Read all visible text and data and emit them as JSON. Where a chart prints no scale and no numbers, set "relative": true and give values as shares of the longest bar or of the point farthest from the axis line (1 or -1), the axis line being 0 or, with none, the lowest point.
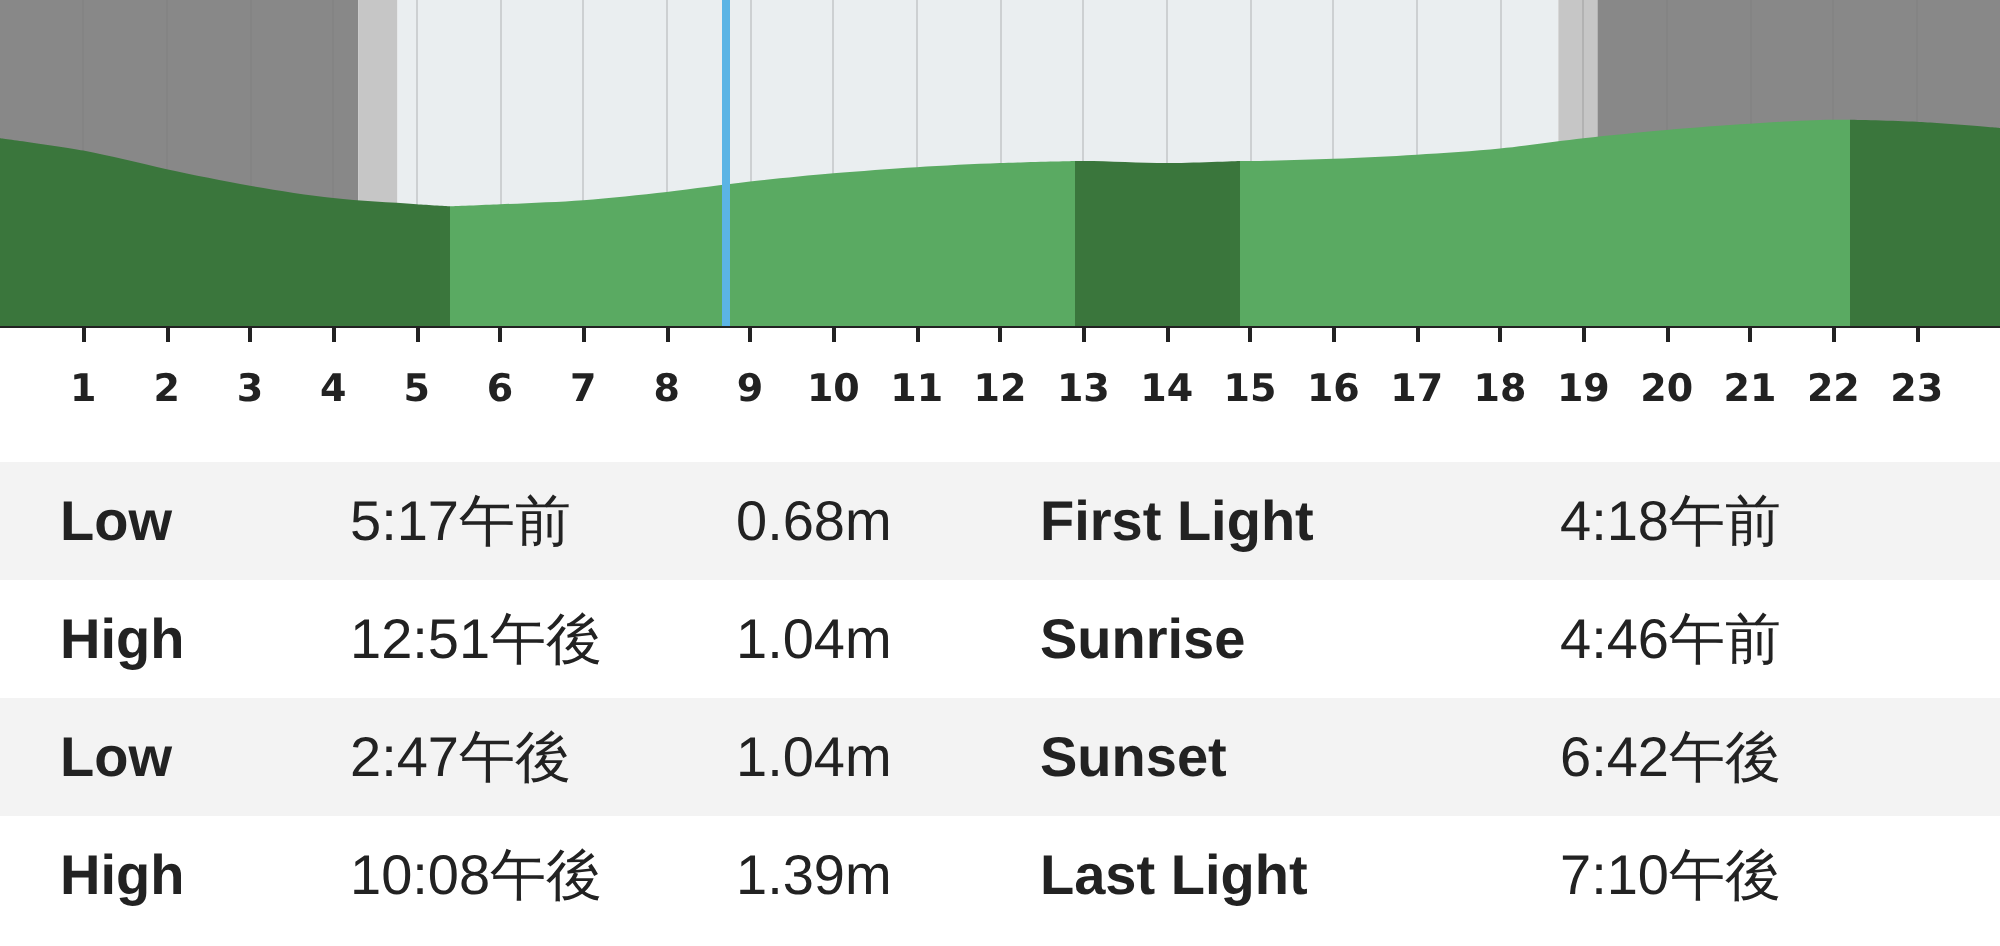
{
  "chart_data": {
    "type": "area",
    "relative": true,
    "xlim": [
      0,
      24
    ],
    "xticks": [
      1,
      2,
      3,
      4,
      5,
      6,
      7,
      8,
      9,
      10,
      11,
      12,
      13,
      14,
      15,
      16,
      17,
      18,
      19,
      20,
      21,
      22,
      23
    ],
    "grid": "x",
    "series": [
      {
        "color": "#3a763c",
        "x": [
          0,
          1,
          2,
          3,
          4,
          5,
          5.4
        ],
        "values": [
          0.91,
          0.85,
          0.76,
          0.68,
          0.62,
          0.59,
          0.58
        ]
      },
      {
        "color": "#5aaa62",
        "x": [
          5.4,
          6,
          7,
          8,
          9,
          10,
          11,
          12,
          12.9
        ],
        "values": [
          0.58,
          0.59,
          0.61,
          0.65,
          0.7,
          0.74,
          0.77,
          0.79,
          0.8
        ]
      },
      {
        "color": "#3a763c",
        "x": [
          12.9,
          13,
          14,
          14.88
        ],
        "values": [
          0.8,
          0.8,
          0.79,
          0.8
        ]
      },
      {
        "color": "#5aaa62",
        "x": [
          14.88,
          15,
          16,
          17,
          18,
          19,
          20,
          21,
          22,
          22.2
        ],
        "values": [
          0.8,
          0.8,
          0.81,
          0.83,
          0.86,
          0.91,
          0.95,
          0.98,
          1.0,
          1.0
        ]
      },
      {
        "color": "#3a763c",
        "x": [
          22.2,
          23,
          24
        ],
        "values": [
          1.0,
          0.99,
          0.96
        ]
      }
    ],
    "bands": [
      {
        "axis": "x",
        "from": 0,
        "to": 4.3,
        "color": "#888888"
      },
      {
        "axis": "x",
        "from": 4.3,
        "to": 4.77,
        "color": "#c6c6c6"
      },
      {
        "axis": "x",
        "from": 4.77,
        "to": 18.7,
        "color": "#eaeef0"
      },
      {
        "axis": "x",
        "from": 18.7,
        "to": 19.17,
        "color": "#c6c6c6"
      },
      {
        "axis": "x",
        "from": 19.17,
        "to": 24,
        "color": "#888888"
      }
    ],
    "ref_lines": [
      {
        "axis": "x",
        "value": 8.71,
        "color": "#5bb4e5"
      }
    ],
    "annotations": [
      "Low",
      "5:17午前",
      "0.68m",
      "First Light",
      "4:18午前",
      "High",
      "12:51午後",
      "1.04m",
      "Sunrise",
      "4:46午前",
      "Low",
      "2:47午後",
      "1.04m",
      "Sunset",
      "6:42午後",
      "High",
      "10:08午後",
      "1.39m",
      "Last Light",
      "7:10午後"
    ]
  }
}
